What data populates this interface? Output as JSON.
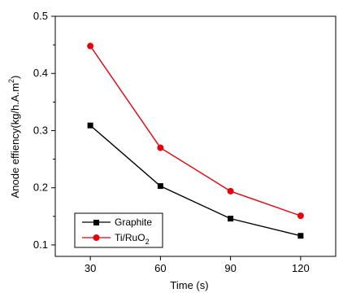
{
  "chart_data": {
    "type": "line",
    "xlabel": "Time (s)",
    "ylabel": "Anode effiency(kg/h.A.m",
    "ylabel_sup": "2",
    "ylabel_tail": ")",
    "x": [
      30,
      60,
      90,
      120
    ],
    "x_ticks": [
      30,
      60,
      90,
      120
    ],
    "y_ticks": [
      0.1,
      0.2,
      0.3,
      0.4,
      0.5
    ],
    "xlim": [
      15,
      135
    ],
    "ylim": [
      0.08,
      0.5
    ],
    "grid": false,
    "legend_position": "bottom-left",
    "series": [
      {
        "name": "Graphite",
        "values": [
          0.309,
          0.203,
          0.146,
          0.116
        ],
        "color": "#000000",
        "marker": "square"
      },
      {
        "name": "Ti/RuO",
        "name_sub": "2",
        "values": [
          0.448,
          0.27,
          0.194,
          0.151
        ],
        "color": "#e8000b",
        "marker": "circle"
      }
    ]
  }
}
